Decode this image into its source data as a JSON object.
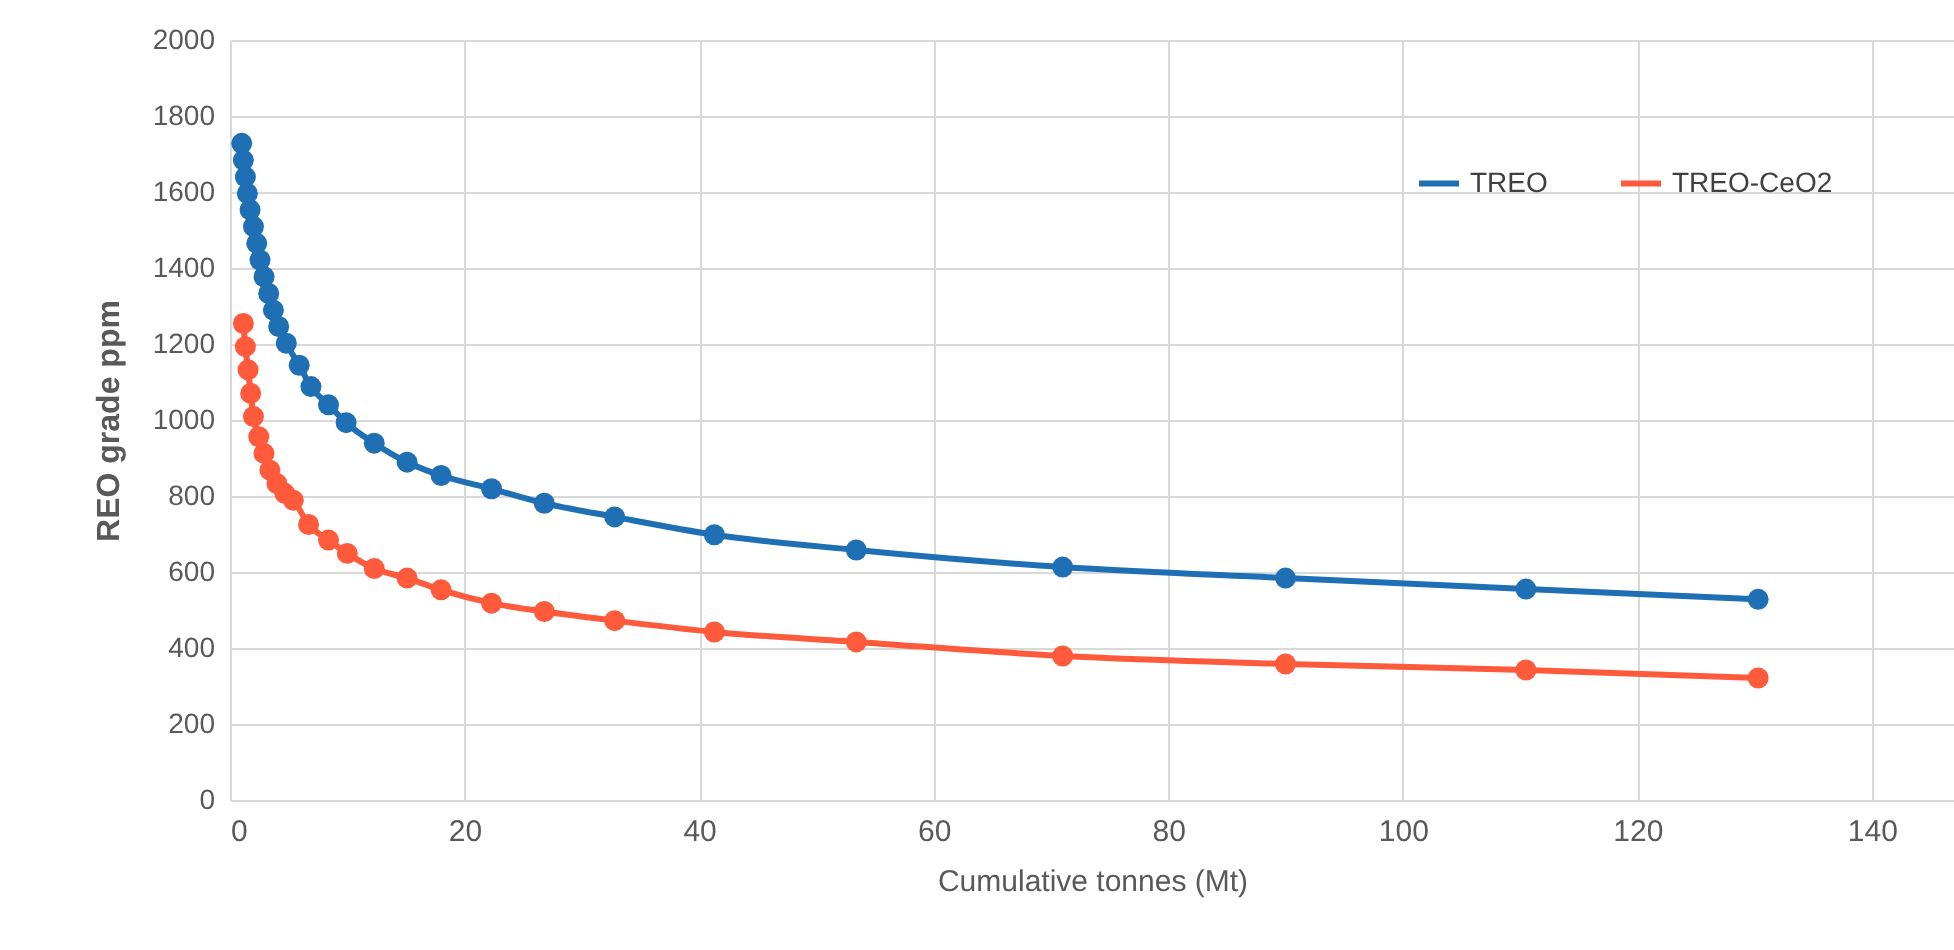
{
  "chart_data": {
    "type": "line",
    "xlabel": "Cumulative tonnes (Mt)",
    "ylabel": "REO grade ppm",
    "xlim": [
      0,
      147
    ],
    "xticks": [
      0,
      20,
      40,
      60,
      80,
      100,
      120,
      140
    ],
    "ylim": [
      0,
      2000
    ],
    "yticks": [
      0,
      200,
      400,
      600,
      800,
      1000,
      1200,
      1400,
      1600,
      1800,
      2000
    ],
    "grid": true,
    "legend": "top right",
    "marker": "circle",
    "line_style": "solid",
    "series": [
      {
        "name": "TREO",
        "color": "#1f6fb5",
        "x": [
          1.0,
          1.14,
          1.31,
          1.48,
          1.71,
          2.0,
          2.28,
          2.56,
          2.9,
          3.3,
          3.7,
          4.15,
          4.8,
          5.9,
          6.9,
          8.4,
          9.9,
          12.3,
          15.1,
          18.0,
          22.3,
          26.8,
          32.8,
          41.3,
          53.4,
          71.0,
          90.0,
          110.5,
          130.3
        ],
        "values": [
          1728,
          1684,
          1640,
          1596,
          1553,
          1509,
          1465,
          1421,
          1377,
          1333,
          1289,
          1246,
          1202,
          1144,
          1088,
          1040,
          993,
          939,
          889,
          854,
          819,
          781,
          745,
          698,
          658,
          613,
          584,
          555,
          528
        ]
      },
      {
        "name": "TREO-CeO2",
        "color": "#ff5a3c",
        "x": [
          1.14,
          1.31,
          1.54,
          1.76,
          2.0,
          2.45,
          2.9,
          3.4,
          4.0,
          4.67,
          5.4,
          6.7,
          8.4,
          10.0,
          12.3,
          15.1,
          18.0,
          22.3,
          26.8,
          32.8,
          41.3,
          53.4,
          71.0,
          90.0,
          110.5,
          130.3
        ],
        "values": [
          1254,
          1193,
          1132,
          1070,
          1009,
          956,
          912,
          868,
          833,
          807,
          789,
          725,
          684,
          649,
          609,
          584,
          553,
          518,
          496,
          472,
          442,
          416,
          379,
          358,
          342,
          321
        ]
      }
    ]
  }
}
